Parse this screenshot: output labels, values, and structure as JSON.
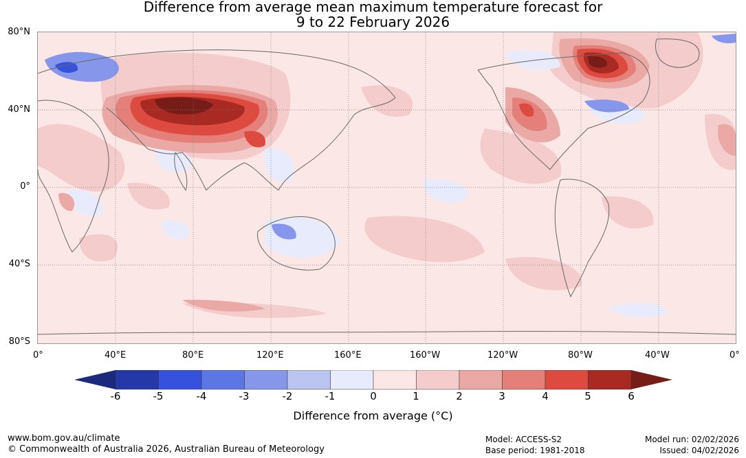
{
  "title": {
    "line1": "Difference from average mean maximum temperature forecast for",
    "line2": "9 to 22 February 2026"
  },
  "map": {
    "lat_labels": [
      "80°N",
      "40°N",
      "0°",
      "40°S",
      "80°S"
    ],
    "lon_labels": [
      "0°",
      "40°E",
      "80°E",
      "120°E",
      "160°E",
      "160°W",
      "120°W",
      "80°W",
      "40°W",
      "0°"
    ]
  },
  "colorbar": {
    "ticks": [
      "-6",
      "-5",
      "-4",
      "-3",
      "-2",
      "-1",
      "0",
      "1",
      "2",
      "3",
      "4",
      "5",
      "6"
    ],
    "colors": [
      "#2438a8",
      "#3652dc",
      "#5c76e4",
      "#8596eb",
      "#bcc5f2",
      "#e8ebfb",
      "#fbe8e6",
      "#f4cccc",
      "#eba9a6",
      "#e57f79",
      "#dc4a40",
      "#a82a23"
    ],
    "under_color": "#1b2a7c",
    "over_color": "#761d17",
    "label": "Difference from average (°C)"
  },
  "footer": {
    "url": "www.bom.gov.au/climate",
    "copyright": "© Commonwealth of Australia 2026, Australian Bureau of Meteorology",
    "model": "Model: ACCESS-S2",
    "base_period": "Base period: 1981-2018",
    "model_run": "Model run: 02/02/2026",
    "issued": "Issued: 04/02/2026"
  }
}
